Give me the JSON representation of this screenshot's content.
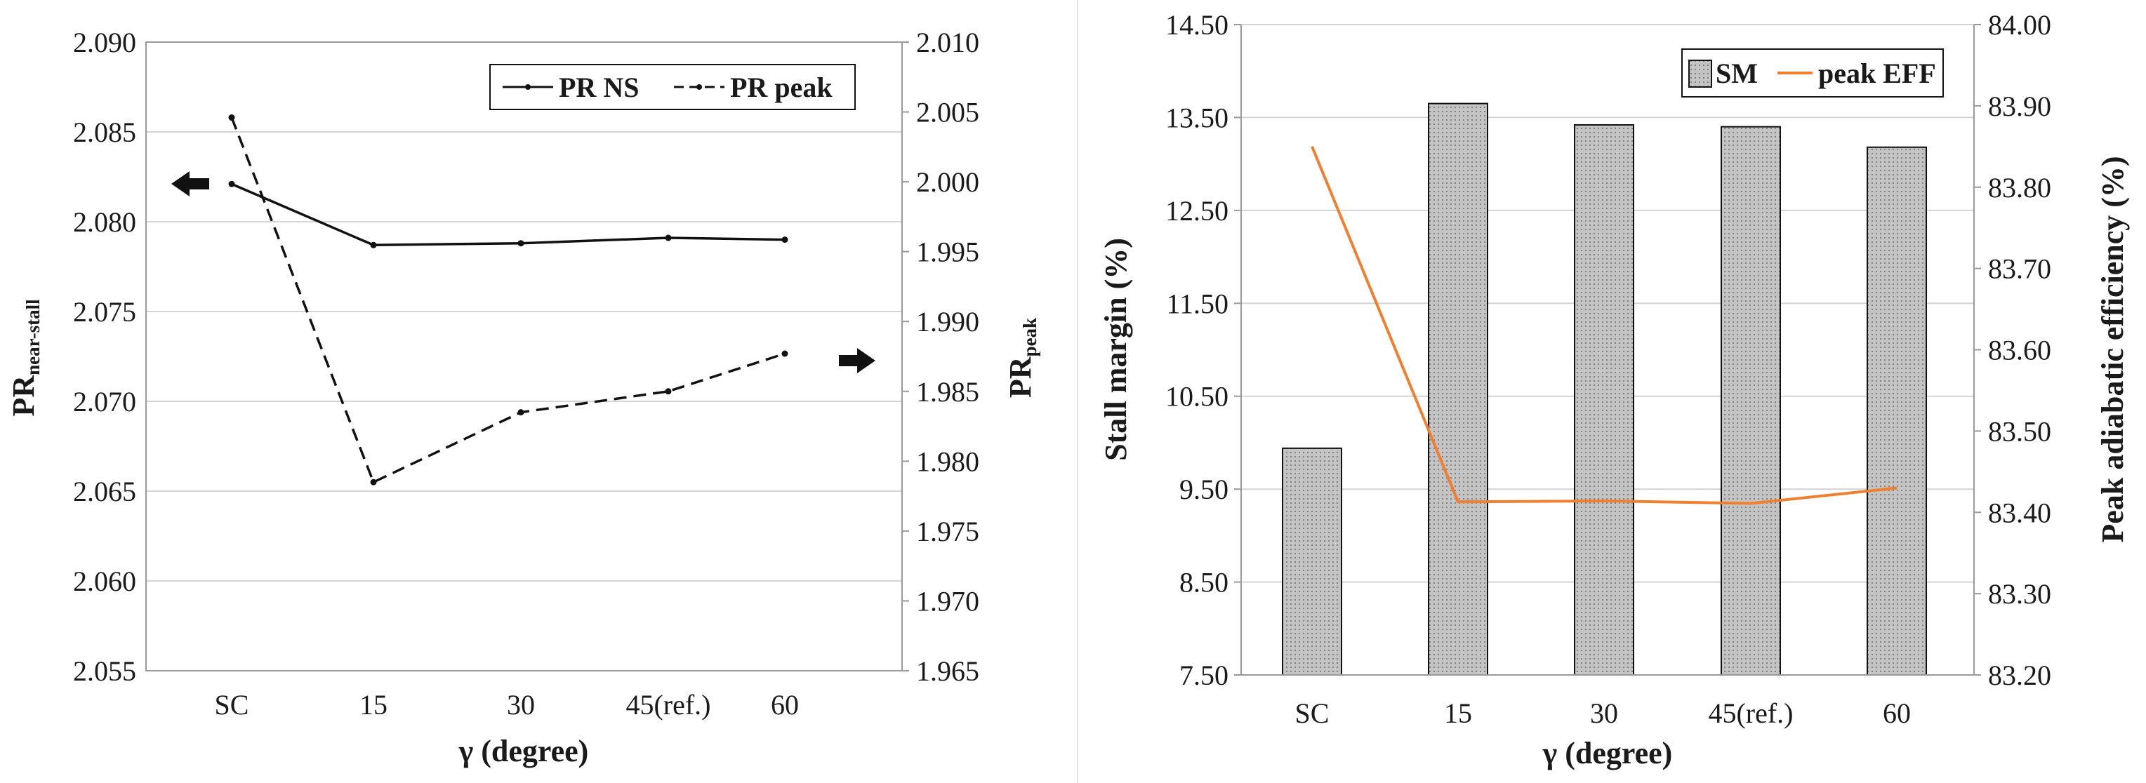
{
  "chart_data": [
    {
      "type": "line",
      "categories": [
        "SC",
        "15",
        "30",
        "45(ref.)",
        "60"
      ],
      "xlabel": "γ (degree)",
      "ylabel_left": {
        "main": "PR",
        "sub": "near-stall"
      },
      "ylabel_right": {
        "main": "PR",
        "sub": "peak"
      },
      "ylim_left": [
        2.055,
        2.09
      ],
      "ylim_right": [
        1.965,
        2.01
      ],
      "yticks_left": [
        "2.055",
        "2.060",
        "2.065",
        "2.070",
        "2.075",
        "2.080",
        "2.085",
        "2.090"
      ],
      "yticks_right": [
        "1.965",
        "1.970",
        "1.975",
        "1.980",
        "1.985",
        "1.990",
        "1.995",
        "2.000",
        "2.005",
        "2.010"
      ],
      "series": [
        {
          "name": "PR NS",
          "axis": "left",
          "style": "solid",
          "values": [
            2.0821,
            2.0787,
            2.0788,
            2.0791,
            2.079
          ]
        },
        {
          "name": "PR peak",
          "axis": "right",
          "style": "dashed",
          "values": [
            2.0046,
            1.9785,
            1.9835,
            1.985,
            1.9877
          ]
        }
      ],
      "legend": "top-right",
      "grid": "horizontal",
      "annotations": [
        "arrow pointing to left axis",
        "arrow pointing to right axis"
      ]
    },
    {
      "type": "bar",
      "categories": [
        "SC",
        "15",
        "30",
        "45(ref.)",
        "60"
      ],
      "xlabel": "γ (degree)",
      "ylabel_left": "Stall margin (%)",
      "ylabel_right": "Peak adiabatic efficiency (%)",
      "ylim_left": [
        7.5,
        14.5
      ],
      "ylim_right": [
        83.2,
        84.0
      ],
      "yticks_left": [
        "7.50",
        "8.50",
        "9.50",
        "10.50",
        "11.50",
        "12.50",
        "13.50",
        "14.50"
      ],
      "yticks_right": [
        "83.20",
        "83.30",
        "83.40",
        "83.50",
        "83.60",
        "83.70",
        "83.80",
        "83.90",
        "84.00"
      ],
      "series": [
        {
          "name": "SM",
          "axis": "left",
          "kind": "bar",
          "color": "#b4b4b4",
          "values": [
            9.94,
            13.65,
            13.42,
            13.4,
            13.18
          ]
        },
        {
          "name": "peak EFF",
          "axis": "right",
          "kind": "line",
          "color": "#f08030",
          "values": [
            83.85,
            83.413,
            83.414,
            83.411,
            83.43
          ]
        }
      ],
      "legend": "top-right",
      "grid": "horizontal"
    }
  ]
}
